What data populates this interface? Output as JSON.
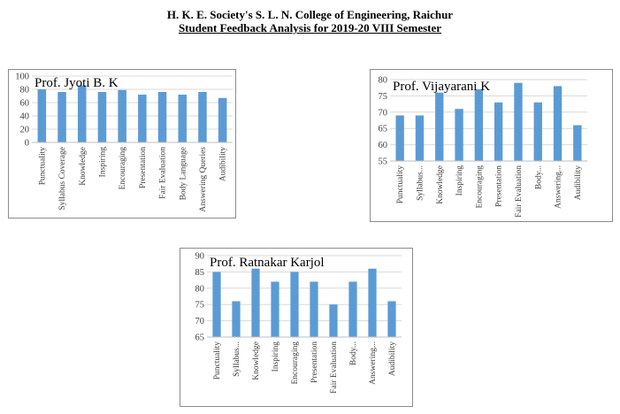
{
  "header": {
    "line1": "H. K. E. Society's S. L. N. College of Engineering, Raichur",
    "line2": "Student Feedback Analysis for 2019-20 VIII Semester"
  },
  "bar_color": "#5b9bd5",
  "chart_data": [
    {
      "type": "bar",
      "title": "Prof. Jyoti B. K",
      "categories": [
        "Punctuality",
        "Syllabus Coverage",
        "Knowledge",
        "Inspiring",
        "Encouraging",
        "Presentation",
        "Fair Evaluation",
        "Body Language",
        "Answering Queries",
        "Audibility"
      ],
      "values": [
        80,
        76,
        86,
        76,
        79,
        72,
        76,
        72,
        76,
        67
      ],
      "ylim": [
        0,
        100
      ],
      "yticks": [
        0,
        20,
        40,
        60,
        80,
        100
      ],
      "grid": true
    },
    {
      "type": "bar",
      "title": "Prof. Vijayarani K",
      "categories": [
        "Punctuality",
        "Syllabus...",
        "Knowledge",
        "Inspiring",
        "Encouraging",
        "Presentation",
        "Fair Evaluation",
        "Body...",
        "Answering...",
        "Audibility"
      ],
      "values": [
        69,
        69,
        76,
        71,
        77,
        73,
        79,
        73,
        78,
        66
      ],
      "ylim": [
        55,
        80
      ],
      "yticks": [
        55,
        60,
        65,
        70,
        75,
        80
      ],
      "grid": true
    },
    {
      "type": "bar",
      "title": "Prof. Ratnakar Karjol",
      "categories": [
        "Punctuality",
        "Syllabus...",
        "Knowledge",
        "Inspiring",
        "Encouraging",
        "Presentation",
        "Fair Evaluation",
        "Body...",
        "Answering...",
        "Audibility"
      ],
      "values": [
        85,
        76,
        86,
        82,
        85,
        82,
        75,
        82,
        86,
        76
      ],
      "ylim": [
        65,
        90
      ],
      "yticks": [
        65,
        70,
        75,
        80,
        85,
        90
      ],
      "grid": true
    }
  ]
}
